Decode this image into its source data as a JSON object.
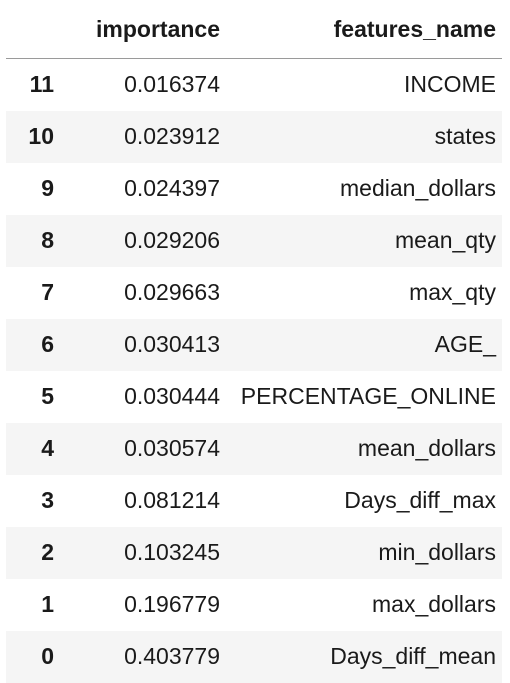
{
  "table": {
    "columns": [
      "",
      "importance",
      "features_name"
    ],
    "rows": [
      {
        "index": "11",
        "importance": "0.016374",
        "features_name": "INCOME"
      },
      {
        "index": "10",
        "importance": "0.023912",
        "features_name": "states"
      },
      {
        "index": "9",
        "importance": "0.024397",
        "features_name": "median_dollars"
      },
      {
        "index": "8",
        "importance": "0.029206",
        "features_name": "mean_qty"
      },
      {
        "index": "7",
        "importance": "0.029663",
        "features_name": "max_qty"
      },
      {
        "index": "6",
        "importance": "0.030413",
        "features_name": "AGE_"
      },
      {
        "index": "5",
        "importance": "0.030444",
        "features_name": "PERCENTAGE_ONLINE"
      },
      {
        "index": "4",
        "importance": "0.030574",
        "features_name": "mean_dollars"
      },
      {
        "index": "3",
        "importance": "0.081214",
        "features_name": "Days_diff_max"
      },
      {
        "index": "2",
        "importance": "0.103245",
        "features_name": "min_dollars"
      },
      {
        "index": "1",
        "importance": "0.196779",
        "features_name": "max_dollars"
      },
      {
        "index": "0",
        "importance": "0.403779",
        "features_name": "Days_diff_mean"
      }
    ]
  }
}
